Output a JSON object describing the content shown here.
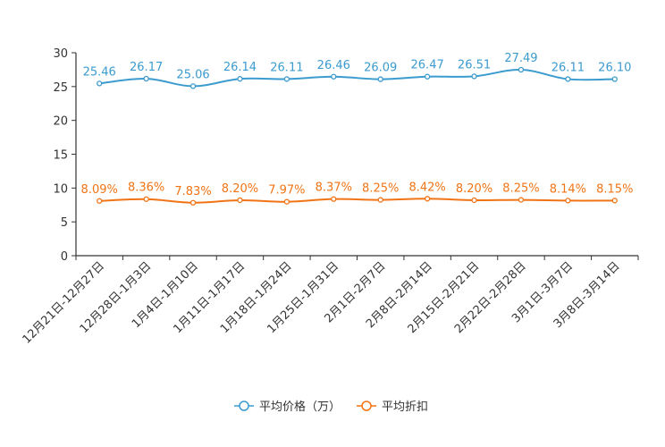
{
  "chart_data": {
    "type": "line",
    "title": "",
    "xlabel": "",
    "ylabel": "",
    "ylim": [
      0,
      30
    ],
    "yticks": [
      0,
      5,
      10,
      15,
      20,
      25,
      30
    ],
    "grid": false,
    "legend_position": "bottom",
    "categories": [
      "12月21日-12月27日",
      "12月28日-1月3日",
      "1月4日-1月10日",
      "1月11日-1月17日",
      "1月18日-1月24日",
      "1月25日-1月31日",
      "2月1日-2月7日",
      "2月8日-2月14日",
      "2月15日-2月21日",
      "2月22日-2月28日",
      "3月1日-3月7日",
      "3月8日-3月14日"
    ],
    "series": [
      {
        "name": "平均价格（万）",
        "color": "#3b9bcf",
        "values": [
          25.46,
          26.17,
          25.06,
          26.14,
          26.11,
          26.46,
          26.09,
          26.47,
          26.51,
          27.49,
          26.11,
          26.1
        ],
        "labels": [
          "25.46",
          "26.17",
          "25.06",
          "26.14",
          "26.11",
          "26.46",
          "26.09",
          "26.47",
          "26.51",
          "27.49",
          "26.11",
          "26.10"
        ]
      },
      {
        "name": "平均折扣",
        "color": "#f07416",
        "values": [
          8.09,
          8.36,
          7.83,
          8.2,
          7.97,
          8.37,
          8.25,
          8.42,
          8.2,
          8.25,
          8.14,
          8.15
        ],
        "labels": [
          "8.09%",
          "8.36%",
          "7.83%",
          "8.20%",
          "7.97%",
          "8.37%",
          "8.25%",
          "8.42%",
          "8.20%",
          "8.25%",
          "8.14%",
          "8.15%"
        ]
      }
    ]
  }
}
